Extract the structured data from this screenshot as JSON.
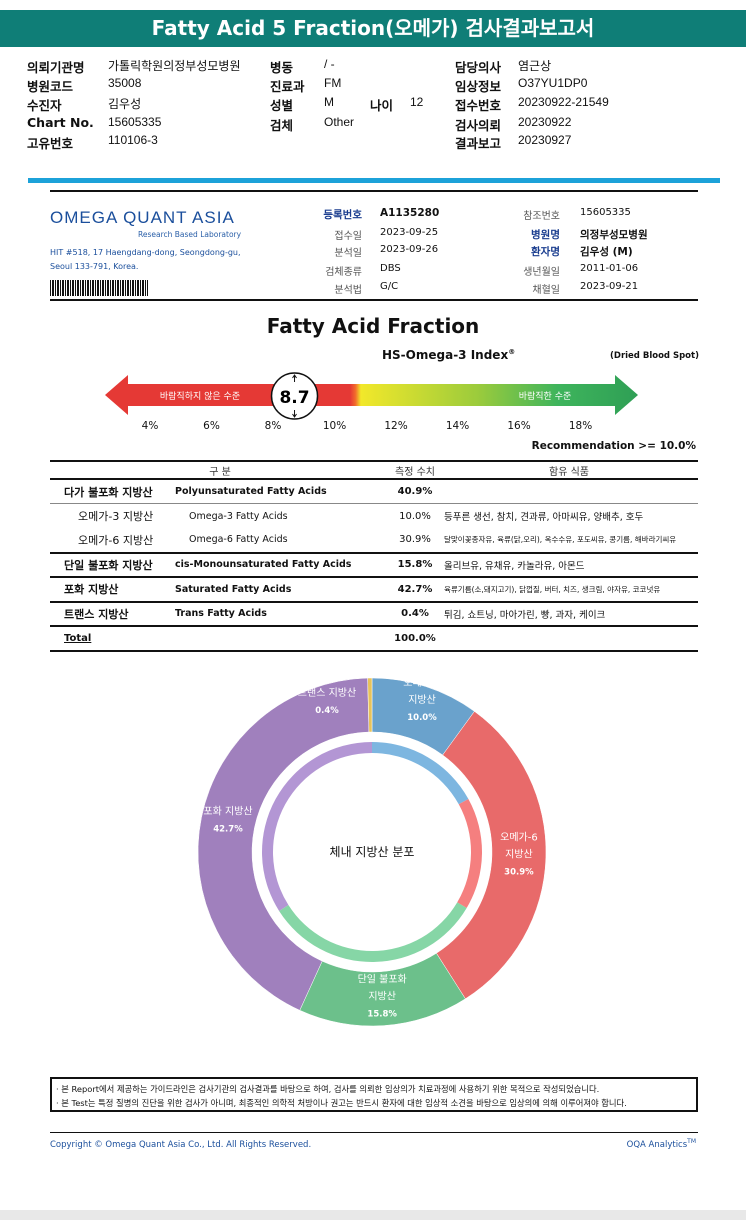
{
  "title": "Fatty Acid 5 Fraction(오메가) 검사결과보고서",
  "header": {
    "left": [
      {
        "label": "의뢰기관명",
        "value": "가톨릭학원의정부성모병원"
      },
      {
        "label": "병원코드",
        "value": "35008"
      },
      {
        "label": "수진자",
        "value": "김우성"
      },
      {
        "label": "Chart No.",
        "value": "15605335"
      },
      {
        "label": "고유번호",
        "value": "110106-3"
      }
    ],
    "mid": [
      {
        "label": "병동",
        "value": "/ -"
      },
      {
        "label": "진료과",
        "value": "FM"
      },
      {
        "label": "성별",
        "value": "M"
      },
      {
        "label": "검체",
        "value": "Other"
      }
    ],
    "age": {
      "label": "나이",
      "value": "12"
    },
    "right": [
      {
        "label": "담당의사",
        "value": "염근상"
      },
      {
        "label": "임상정보",
        "value": "O37YU1DP0"
      },
      {
        "label": "접수번호",
        "value": "20230922-21549"
      },
      {
        "label": "검사의뢰",
        "value": "20230922"
      },
      {
        "label": "결과보고",
        "value": "20230927"
      }
    ]
  },
  "lab": {
    "name": "OMEGA QUANT ASIA",
    "tagline": "Research Based Laboratory",
    "address1": "HIT #518, 17 Haengdang-dong, Seongdong-gu,",
    "address2": "Seoul 133-791, Korea."
  },
  "info_mid": [
    {
      "label": "등록번호",
      "value": "A1135280",
      "bold": true
    },
    {
      "label": "접수일",
      "value": "2023-09-25"
    },
    {
      "label": "분석일",
      "value": "2023-09-26"
    },
    {
      "label": "검체종류",
      "value": "DBS"
    },
    {
      "label": "분석법",
      "value": "G/C"
    }
  ],
  "info_right": [
    {
      "label": "참조번호",
      "value": "15605335"
    },
    {
      "label": "병원명",
      "value": "의정부성모병원",
      "bold": true
    },
    {
      "label": "환자명",
      "value": "김우성 (M)",
      "bold": true
    },
    {
      "label": "생년월일",
      "value": "2011-01-06"
    },
    {
      "label": "채혈일",
      "value": "2023-09-21"
    }
  ],
  "section_title": "Fatty Acid Fraction",
  "index": {
    "title": "HS-Omega-3 Index",
    "sup": "®",
    "sample": "(Dried Blood Spot)",
    "value": 8.7,
    "value_label": "8.7",
    "bad_label": "바람직하지 않은 수준",
    "good_label": "바람직한 수준",
    "ticks": [
      "4%",
      "6%",
      "8%",
      "10%",
      "12%",
      "14%",
      "16%",
      "18%"
    ],
    "recommendation": "Recommendation  >= 10.0%"
  },
  "table": {
    "headers": [
      "구 분",
      "측정 수치",
      "함유 식품"
    ],
    "rows": [
      {
        "ko": "다가 불포화 지방산",
        "en": "Polyunsaturated Fatty Acids",
        "value": "40.9%",
        "food": "",
        "indent": false
      },
      {
        "ko": "오메가-3 지방산",
        "en": "Omega-3 Fatty Acids",
        "value": "10.0%",
        "food": "등푸른 생선, 참치, 견과류, 아마씨유, 양배추, 호두",
        "indent": true
      },
      {
        "ko": "오메가-6 지방산",
        "en": "Omega-6 Fatty Acids",
        "value": "30.9%",
        "food": "달맞이꽃종자유, 육류(닭,오리), 옥수수유, 포도씨유, 콩기름, 해바라기씨유",
        "indent": true
      },
      {
        "ko": "단일 불포화 지방산",
        "en": "cis-Monounsaturated Fatty Acids",
        "value": "15.8%",
        "food": "올리브유, 유채유, 카놀라유, 아몬드",
        "indent": false
      },
      {
        "ko": "포화 지방산",
        "en": "Saturated Fatty Acids",
        "value": "42.7%",
        "food": "육류기름(소,돼지고기), 닭껍질, 버터, 치즈, 생크림, 야자유, 코코넛유",
        "indent": false
      },
      {
        "ko": "트랜스 지방산",
        "en": "Trans Fatty Acids",
        "value": "0.4%",
        "food": "튀김, 쇼트닝, 마아가린, 빵, 과자, 케이크",
        "indent": false
      }
    ],
    "total": {
      "label": "Total",
      "value": "100.0%"
    }
  },
  "chart_data": {
    "type": "pie",
    "title": "체내 지방산 분포",
    "slices": [
      {
        "name": "오메가-3 지방산",
        "label_lines": [
          "오메가-3",
          "지방산"
        ],
        "value": 10.0,
        "pct": "10.0%",
        "color": "#6aa2cc"
      },
      {
        "name": "오메가-6 지방산",
        "label_lines": [
          "오메가-6",
          "지방산"
        ],
        "value": 30.9,
        "pct": "30.9%",
        "color": "#e86a6a"
      },
      {
        "name": "단일 불포화 지방산",
        "label_lines": [
          "단일 불포화",
          "지방산"
        ],
        "value": 15.8,
        "pct": "15.8%",
        "color": "#6cc08b"
      },
      {
        "name": "포화 지방산",
        "label_lines": [
          "포화 지방산"
        ],
        "value": 42.7,
        "pct": "42.7%",
        "color": "#a080bd"
      },
      {
        "name": "트랜스 지방산",
        "label_lines": [
          "트랜스 지방산"
        ],
        "value": 0.4,
        "pct": "0.4%",
        "color": "#e8c35a"
      }
    ]
  },
  "notes": [
    "· 본 Report에서 제공하는 가이드라인은 검사기관의 검사결과를 바탕으로 하여, 검사를 의뢰한 임상의가 치료과정에 사용하기 위한 목적으로 작성되었습니다.",
    "· 본 Test는 특정 질병의 진단을 위한 검사가 아니며, 최종적인 의학적 처방이나 권고는 반드시 환자에 대한 임상적 소견을 바탕으로 임상의에 의해 이루어져야 합니다."
  ],
  "footer": {
    "copyright": "Copyright © Omega Quant Asia Co., Ltd.  All Rights Reserved.",
    "brand": "OQA Analytics",
    "tm": "TM"
  }
}
